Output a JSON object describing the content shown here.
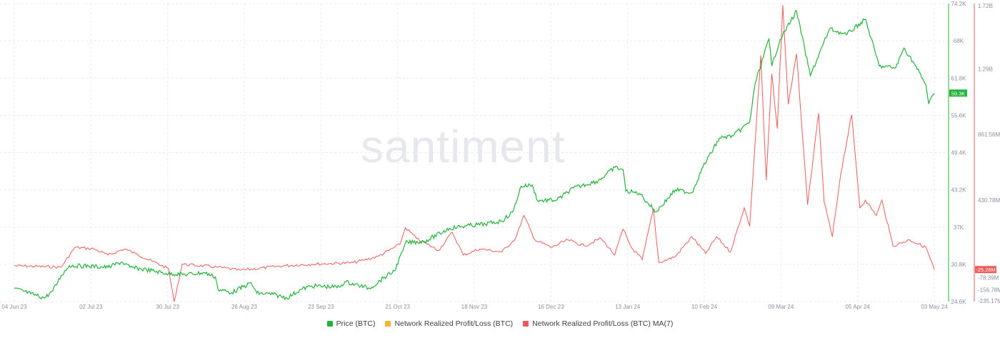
{
  "watermark": "santiment",
  "colors": {
    "price": "#22b33a",
    "profit_loss": "#f1b82e",
    "profit_loss_ma7": "#ee5a5a",
    "grid": "#e9ebef",
    "axis_text": "#8a909c"
  },
  "legend": [
    {
      "label": "Price (BTC)",
      "color": "#22b33a"
    },
    {
      "label": "Network Realized Profit/Loss (BTC)",
      "color": "#f1b82e"
    },
    {
      "label": "Network Realized Profit/Loss (BTC) MA(7)",
      "color": "#ee5a5a"
    }
  ],
  "chart_data": {
    "type": "line",
    "x_ticks": [
      "04 Jun 23",
      "02 Jul 23",
      "30 Jul 23",
      "26 Aug 23",
      "23 Sep 23",
      "21 Oct 23",
      "18 Nov 23",
      "16 Dec 23",
      "13 Jan 24",
      "10 Feb 24",
      "09 Mar 24",
      "05 Apr 24",
      "03 May 24"
    ],
    "price_axis": {
      "ticks": [
        "74.2K",
        "68K",
        "61.8K",
        "55.6K",
        "49.4K",
        "43.2K",
        "37K",
        "30.8K",
        "24.6K"
      ],
      "ylim": [
        24600,
        74200
      ],
      "current": "59.3K"
    },
    "pl_axis": {
      "ticks": [
        "1.72B",
        "1.29B",
        "861.56M",
        "430.78M",
        "-78.39M",
        "-156.78M",
        "-235.17M"
      ],
      "ylim": [
        -235170000,
        1720000000
      ],
      "current": "-25.26M"
    },
    "series": [
      {
        "name": "Price (BTC)",
        "axis": "price",
        "points": [
          [
            "2023-06-04",
            26800
          ],
          [
            "2023-06-10",
            25900
          ],
          [
            "2023-06-15",
            25200
          ],
          [
            "2023-06-18",
            26400
          ],
          [
            "2023-06-21",
            28900
          ],
          [
            "2023-06-24",
            30600
          ],
          [
            "2023-07-01",
            30500
          ],
          [
            "2023-07-08",
            30300
          ],
          [
            "2023-07-13",
            31200
          ],
          [
            "2023-07-16",
            30300
          ],
          [
            "2023-07-22",
            29900
          ],
          [
            "2023-07-29",
            29300
          ],
          [
            "2023-08-05",
            29100
          ],
          [
            "2023-08-12",
            29400
          ],
          [
            "2023-08-16",
            28700
          ],
          [
            "2023-08-17",
            26600
          ],
          [
            "2023-08-22",
            26100
          ],
          [
            "2023-08-29",
            27700
          ],
          [
            "2023-08-31",
            26000
          ],
          [
            "2023-09-06",
            25800
          ],
          [
            "2023-09-11",
            25200
          ],
          [
            "2023-09-16",
            26600
          ],
          [
            "2023-09-20",
            27200
          ],
          [
            "2023-09-30",
            27000
          ],
          [
            "2023-10-02",
            27900
          ],
          [
            "2023-10-11",
            26800
          ],
          [
            "2023-10-16",
            28500
          ],
          [
            "2023-10-20",
            29700
          ],
          [
            "2023-10-23",
            33000
          ],
          [
            "2023-10-24",
            34400
          ],
          [
            "2023-10-31",
            34600
          ],
          [
            "2023-11-09",
            36800
          ],
          [
            "2023-11-15",
            37200
          ],
          [
            "2023-11-22",
            37500
          ],
          [
            "2023-11-28",
            38000
          ],
          [
            "2023-12-02",
            39500
          ],
          [
            "2023-12-05",
            43800
          ],
          [
            "2023-12-09",
            44000
          ],
          [
            "2023-12-11",
            41400
          ],
          [
            "2023-12-18",
            41500
          ],
          [
            "2023-12-24",
            43500
          ],
          [
            "2024-01-02",
            44700
          ],
          [
            "2024-01-08",
            46900
          ],
          [
            "2024-01-11",
            46600
          ],
          [
            "2024-01-12",
            43000
          ],
          [
            "2024-01-17",
            42600
          ],
          [
            "2024-01-23",
            39500
          ],
          [
            "2024-01-30",
            43200
          ],
          [
            "2024-02-05",
            42700
          ],
          [
            "2024-02-09",
            47000
          ],
          [
            "2024-02-15",
            51800
          ],
          [
            "2024-02-20",
            52200
          ],
          [
            "2024-02-26",
            54500
          ],
          [
            "2024-02-28",
            61000
          ],
          [
            "2024-03-04",
            68300
          ],
          [
            "2024-03-05",
            63800
          ],
          [
            "2024-03-08",
            68200
          ],
          [
            "2024-03-14",
            73000
          ],
          [
            "2024-03-19",
            62200
          ],
          [
            "2024-03-26",
            70000
          ],
          [
            "2024-04-01",
            69000
          ],
          [
            "2024-04-08",
            71600
          ],
          [
            "2024-04-13",
            63800
          ],
          [
            "2024-04-19",
            63500
          ],
          [
            "2024-04-22",
            66800
          ],
          [
            "2024-04-26",
            64000
          ],
          [
            "2024-04-30",
            60600
          ],
          [
            "2024-05-01",
            57500
          ],
          [
            "2024-05-03",
            59300
          ]
        ]
      },
      {
        "name": "Network Realized Profit/Loss (BTC) MA(7)",
        "axis": "pl",
        "points": [
          [
            "2023-06-04",
            0
          ],
          [
            "2023-06-21",
            -10000000
          ],
          [
            "2023-06-26",
            120000000
          ],
          [
            "2023-07-03",
            110000000
          ],
          [
            "2023-07-08",
            70000000
          ],
          [
            "2023-07-14",
            110000000
          ],
          [
            "2023-07-18",
            80000000
          ],
          [
            "2023-07-24",
            30000000
          ],
          [
            "2023-07-30",
            -20000000
          ],
          [
            "2023-08-01",
            -235170000
          ],
          [
            "2023-08-04",
            10000000
          ],
          [
            "2023-08-17",
            -10000000
          ],
          [
            "2023-08-25",
            -30000000
          ],
          [
            "2023-09-10",
            0
          ],
          [
            "2023-09-20",
            10000000
          ],
          [
            "2023-10-05",
            20000000
          ],
          [
            "2023-10-14",
            60000000
          ],
          [
            "2023-10-22",
            140000000
          ],
          [
            "2023-10-24",
            250000000
          ],
          [
            "2023-10-28",
            180000000
          ],
          [
            "2023-11-05",
            100000000
          ],
          [
            "2023-11-10",
            220000000
          ],
          [
            "2023-11-14",
            70000000
          ],
          [
            "2023-11-20",
            110000000
          ],
          [
            "2023-11-28",
            90000000
          ],
          [
            "2023-12-03",
            180000000
          ],
          [
            "2023-12-06",
            330000000
          ],
          [
            "2023-12-10",
            170000000
          ],
          [
            "2023-12-16",
            120000000
          ],
          [
            "2023-12-22",
            170000000
          ],
          [
            "2023-12-28",
            130000000
          ],
          [
            "2024-01-03",
            180000000
          ],
          [
            "2024-01-08",
            70000000
          ],
          [
            "2024-01-11",
            240000000
          ],
          [
            "2024-01-14",
            120000000
          ],
          [
            "2024-01-18",
            40000000
          ],
          [
            "2024-01-22",
            370000000
          ],
          [
            "2024-01-24",
            20000000
          ],
          [
            "2024-01-30",
            60000000
          ],
          [
            "2024-02-05",
            190000000
          ],
          [
            "2024-02-10",
            80000000
          ],
          [
            "2024-02-14",
            190000000
          ],
          [
            "2024-02-19",
            90000000
          ],
          [
            "2024-02-24",
            380000000
          ],
          [
            "2024-02-26",
            260000000
          ],
          [
            "2024-03-01",
            1380000000
          ],
          [
            "2024-03-03",
            560000000
          ],
          [
            "2024-03-05",
            1260000000
          ],
          [
            "2024-03-07",
            900000000
          ],
          [
            "2024-03-09",
            1710000000
          ],
          [
            "2024-03-11",
            1060000000
          ],
          [
            "2024-03-14",
            1390000000
          ],
          [
            "2024-03-18",
            400000000
          ],
          [
            "2024-03-20",
            700000000
          ],
          [
            "2024-03-22",
            1000000000
          ],
          [
            "2024-03-24",
            420000000
          ],
          [
            "2024-03-27",
            190000000
          ],
          [
            "2024-03-30",
            600000000
          ],
          [
            "2024-04-03",
            990000000
          ],
          [
            "2024-04-06",
            380000000
          ],
          [
            "2024-04-08",
            430000000
          ],
          [
            "2024-04-12",
            330000000
          ],
          [
            "2024-04-14",
            430000000
          ],
          [
            "2024-04-18",
            130000000
          ],
          [
            "2024-04-24",
            170000000
          ],
          [
            "2024-04-30",
            120000000
          ],
          [
            "2024-05-03",
            -25260000
          ]
        ]
      }
    ]
  }
}
